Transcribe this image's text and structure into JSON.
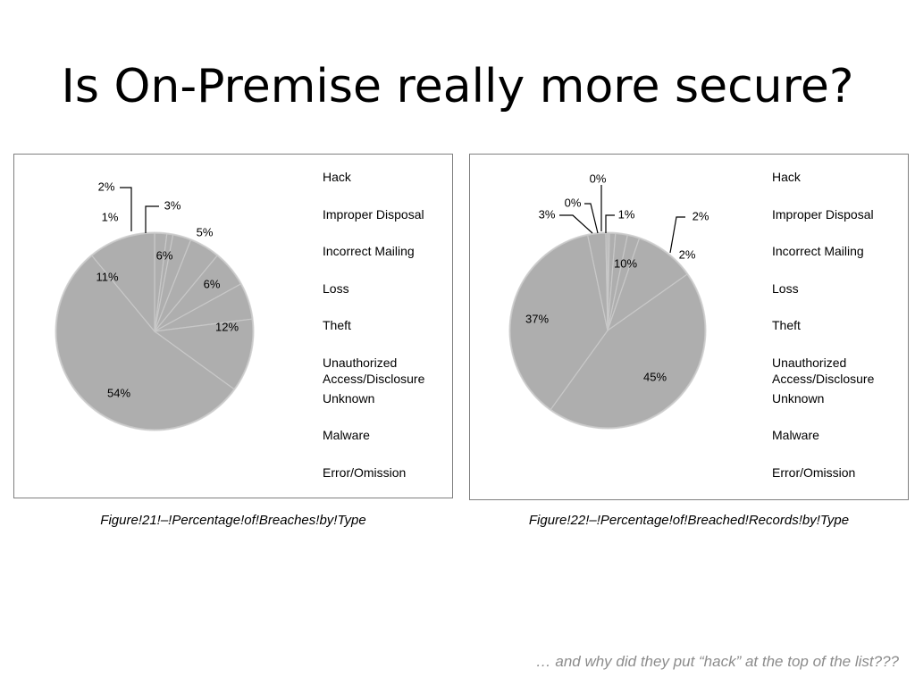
{
  "slide": {
    "title": "Is On-Premise really more secure?",
    "footnote": "… and why did they put “hack” at the top of the list???"
  },
  "chart_data": [
    {
      "type": "pie",
      "caption": "Figure!21!–!Percentage!of!Breaches!by!Type",
      "categories": [
        "Hack",
        "Improper Disposal",
        "Incorrect Mailing",
        "Loss",
        "Theft",
        "Unauthorized Access/Disclosure",
        "Unknown",
        "Malware",
        "Error/Omission"
      ],
      "slices": [
        {
          "label": "2%",
          "value": 2
        },
        {
          "label": "1%",
          "value": 1
        },
        {
          "label": "3%",
          "value": 3
        },
        {
          "label": "5%",
          "value": 5
        },
        {
          "label": "6%",
          "value": 6
        },
        {
          "label": "6%",
          "value": 6
        },
        {
          "label": "12%",
          "value": 12
        },
        {
          "label": "54%",
          "value": 54
        },
        {
          "label": "11%",
          "value": 11
        }
      ],
      "legend_position": "right",
      "colors": {
        "slice": "#aeaeae",
        "separator": "#c8c8c8"
      }
    },
    {
      "type": "pie",
      "caption": "Figure!22!–!Percentage!of!Breached!Records!by!Type",
      "categories": [
        "Hack",
        "Improper Disposal",
        "Incorrect Mailing",
        "Loss",
        "Theft",
        "Unauthorized Access/Disclosure",
        "Unknown",
        "Malware",
        "Error/Omission"
      ],
      "slices": [
        {
          "label": "0%",
          "value": 0.3
        },
        {
          "label": "1%",
          "value": 1
        },
        {
          "label": "2%",
          "value": 2
        },
        {
          "label": "2%",
          "value": 2
        },
        {
          "label": "10%",
          "value": 10
        },
        {
          "label": "45%",
          "value": 45
        },
        {
          "label": "37%",
          "value": 37
        },
        {
          "label": "3%",
          "value": 3
        },
        {
          "label": "0%",
          "value": 0.3
        }
      ],
      "legend_position": "right",
      "colors": {
        "slice": "#aeaeae",
        "separator": "#c8c8c8"
      }
    }
  ]
}
